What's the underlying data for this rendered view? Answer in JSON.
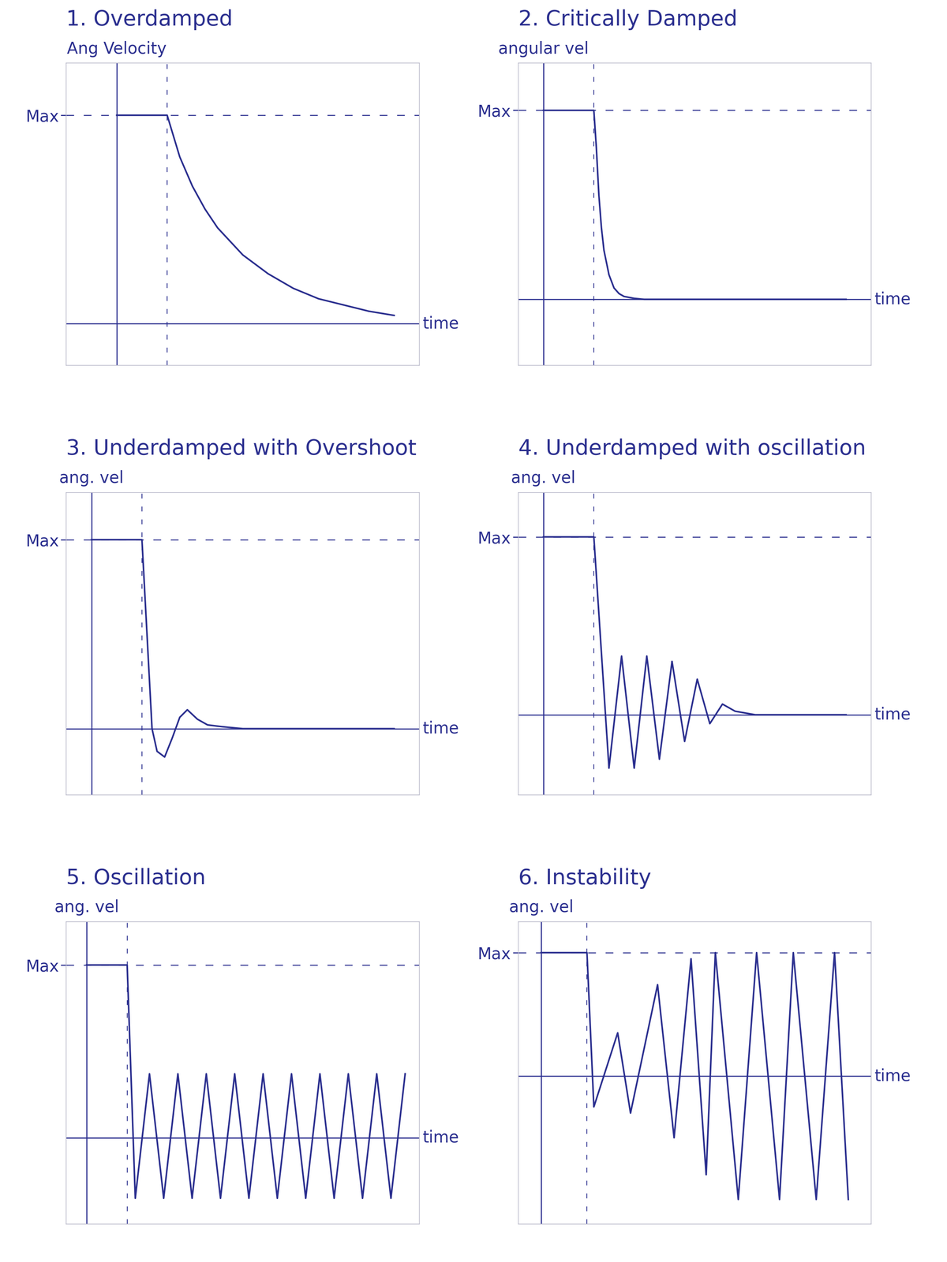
{
  "chart_data": [
    {
      "type": "line",
      "title": "1. Overdamped",
      "y_label": "Ang Velocity",
      "x_label": "time",
      "x": [
        0,
        0.5,
        1,
        1.25,
        1.5,
        1.75,
        2,
        2.5,
        3,
        3.5,
        4,
        4.5,
        5,
        5.5
      ],
      "values": [
        1,
        1,
        1,
        0.8,
        0.66,
        0.55,
        0.46,
        0.33,
        0.24,
        0.17,
        0.12,
        0.09,
        0.06,
        0.04
      ],
      "xlim": [
        -1,
        6
      ],
      "ylim": [
        -0.2,
        1.25
      ],
      "yticks": [
        {
          "value": 1,
          "label": "Max"
        }
      ],
      "tick_labels": "y",
      "color": "#2b2f8f"
    },
    {
      "type": "line",
      "title": "2. Critically Damped",
      "y_label": "angular vel",
      "x_label": "time",
      "x": [
        0,
        0.5,
        1,
        1.05,
        1.1,
        1.15,
        1.2,
        1.3,
        1.4,
        1.5,
        1.6,
        1.8,
        2,
        3,
        4,
        5,
        6
      ],
      "values": [
        1,
        1,
        1,
        0.8,
        0.55,
        0.38,
        0.26,
        0.13,
        0.06,
        0.03,
        0.015,
        0.005,
        0,
        0,
        0,
        0,
        0
      ],
      "xlim": [
        -0.5,
        6.5
      ],
      "ylim": [
        -0.35,
        1.25
      ],
      "yticks": [
        {
          "value": 1,
          "label": "Max"
        }
      ],
      "tick_labels": "y",
      "color": "#2b2f8f"
    },
    {
      "type": "line",
      "title": "3. Underdamped with Overshoot",
      "y_label": "ang. vel",
      "x_label": "time",
      "x": [
        0,
        0.5,
        1,
        1.1,
        1.2,
        1.3,
        1.45,
        1.6,
        1.75,
        1.9,
        2.1,
        2.3,
        2.6,
        3,
        4,
        5,
        6
      ],
      "values": [
        1,
        1,
        1,
        0.5,
        0,
        -0.12,
        -0.15,
        -0.05,
        0.06,
        0.1,
        0.05,
        0.02,
        0.01,
        0,
        0,
        0,
        0
      ],
      "xlim": [
        -0.5,
        6.5
      ],
      "ylim": [
        -0.35,
        1.25
      ],
      "yticks": [
        {
          "value": 1,
          "label": "Max"
        }
      ],
      "tick_labels": "y",
      "color": "#2b2f8f"
    },
    {
      "type": "line",
      "title": "4. Underdamped with oscillation",
      "y_label": "ang. vel",
      "x_label": "time",
      "x": [
        0,
        0.5,
        1,
        1.3,
        1.55,
        1.8,
        2.05,
        2.3,
        2.55,
        2.8,
        3.05,
        3.3,
        3.55,
        3.8,
        4.2,
        5,
        6
      ],
      "values": [
        1,
        1,
        1,
        -0.3,
        0.33,
        -0.3,
        0.33,
        -0.25,
        0.3,
        -0.15,
        0.2,
        -0.05,
        0.06,
        0.02,
        0,
        0,
        0
      ],
      "xlim": [
        -0.5,
        6.5
      ],
      "ylim": [
        -0.45,
        1.25
      ],
      "yticks": [
        {
          "value": 1,
          "label": "Max"
        }
      ],
      "tick_labels": "y",
      "color": "#2b2f8f"
    },
    {
      "type": "line",
      "title": "5. Oscillation",
      "y_label": "ang. vel",
      "x_label": "time",
      "x": [
        0,
        0.5,
        1,
        1.2,
        1.55,
        1.9,
        2.25,
        2.6,
        2.95,
        3.3,
        3.65,
        4.0,
        4.35,
        4.7,
        5.05,
        5.4,
        5.75,
        6.1,
        6.45,
        6.8,
        7.15,
        7.5,
        7.85
      ],
      "values": [
        1,
        1,
        1,
        -0.35,
        0.37,
        -0.35,
        0.37,
        -0.35,
        0.37,
        -0.35,
        0.37,
        -0.35,
        0.37,
        -0.35,
        0.37,
        -0.35,
        0.37,
        -0.35,
        0.37,
        -0.35,
        0.37,
        -0.35,
        0.37
      ],
      "xlim": [
        -0.5,
        8.2
      ],
      "ylim": [
        -0.5,
        1.25
      ],
      "yticks": [
        {
          "value": 1,
          "label": "Max"
        }
      ],
      "tick_labels": "y",
      "color": "#2b2f8f"
    },
    {
      "type": "line",
      "title": "6. Instability",
      "y_label": "ang. vel",
      "x_label": "time",
      "x": [
        0,
        0.5,
        1,
        1.15,
        1.67,
        1.95,
        2.54,
        2.9,
        3.27,
        3.6,
        3.8,
        4.3,
        4.7,
        5.2,
        5.5,
        6.0,
        6.4,
        6.7
      ],
      "values": [
        1,
        1,
        1,
        -0.25,
        0.35,
        -0.3,
        0.74,
        -0.5,
        0.95,
        -0.8,
        1.0,
        -1.0,
        1.0,
        -1.0,
        1.0,
        -1.0,
        1.0,
        -1.0
      ],
      "xlim": [
        -0.5,
        7.2
      ],
      "ylim": [
        -1.2,
        1.25
      ],
      "yticks": [
        {
          "value": 1,
          "label": "Max"
        }
      ],
      "tick_labels": "y",
      "color": "#2b2f8f"
    }
  ]
}
